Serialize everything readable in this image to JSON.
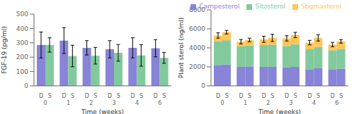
{
  "chart_data": [
    {
      "type": "bar",
      "categories": [
        0,
        1,
        2,
        3,
        4,
        6
      ],
      "xlabel": "Time (weeks)",
      "ylabel": "FGF-19 (pg/ml)",
      "ylim": [
        0,
        500
      ],
      "yticks": [
        0,
        100,
        200,
        300,
        400,
        500
      ],
      "series": [
        {
          "name": "D",
          "color": "#8884d8",
          "values": [
            285,
            315,
            265,
            255,
            265,
            262
          ],
          "errors": [
            90,
            90,
            50,
            60,
            70,
            60
          ]
        },
        {
          "name": "S",
          "color": "#82ca9d",
          "values": [
            285,
            208,
            210,
            230,
            212,
            195
          ],
          "errors": [
            50,
            75,
            58,
            58,
            75,
            38
          ]
        }
      ]
    },
    {
      "type": "bar",
      "stacked": true,
      "legend": "upper right",
      "categories": [
        0,
        1,
        2,
        3,
        4,
        6
      ],
      "xlabel": "Time (weeks)",
      "ylabel": "Plant sterol (ng/ml)",
      "ylim": [
        0,
        8000
      ],
      "yticks": [
        0,
        2000,
        4000,
        6000,
        8000
      ],
      "groups": [
        {
          "name": "D",
          "errors": [
            280,
            230,
            320,
            280,
            240,
            230
          ],
          "series": [
            {
              "name": "Campesterol",
              "color": "#8884d8",
              "values": [
                2200,
                2000,
                2000,
                1950,
                1750,
                1750
              ]
            },
            {
              "name": "Sitosterol",
              "color": "#82ca9d",
              "values": [
                2500,
                2150,
                2300,
                2250,
                2100,
                2000
              ]
            },
            {
              "name": "Stigmasterol",
              "color": "#ffc658",
              "values": [
                600,
                500,
                600,
                800,
                700,
                600
              ]
            }
          ]
        },
        {
          "name": "S",
          "errors": [
            190,
            190,
            380,
            280,
            330,
            180
          ],
          "series": [
            {
              "name": "Campesterol",
              "color": "#8884d8",
              "values": [
                2250,
                2050,
                2000,
                2000,
                1900,
                1800
              ]
            },
            {
              "name": "Sitosterol",
              "color": "#82ca9d",
              "values": [
                2550,
                2200,
                2350,
                2400,
                2200,
                2100
              ]
            },
            {
              "name": "Stigmasterol",
              "color": "#ffc658",
              "values": [
                850,
                580,
                700,
                950,
                950,
                780
              ]
            }
          ]
        }
      ]
    }
  ]
}
